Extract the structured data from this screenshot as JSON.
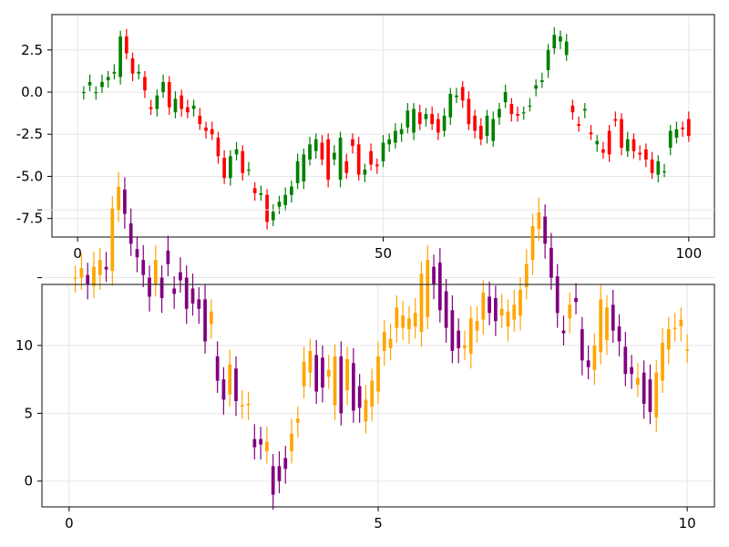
{
  "colors": {
    "up": "#008000",
    "down": "#ff0000",
    "up2": "#ffa500",
    "down2": "#800080",
    "grid": "#e6e6e6",
    "frame": "#000000"
  },
  "chart_data": [
    {
      "type": "candlestick",
      "title": "",
      "xlabel": "",
      "ylabel": "",
      "xlim": [
        -4.2,
        104.2
      ],
      "ylim": [
        -8.6,
        4.6
      ],
      "xticks": [
        0,
        50,
        100
      ],
      "xtick_labels": [
        "0",
        "50",
        "100"
      ],
      "yticks": [
        -7.5,
        -5.0,
        -2.5,
        0.0,
        2.5
      ],
      "ytick_labels": [
        "-7.5",
        "-5.0",
        "-2.5",
        "0.0",
        "2.5"
      ],
      "grid": true,
      "up_color": "green",
      "down_color": "red",
      "x": [
        1,
        2,
        3,
        4,
        5,
        6,
        7,
        8,
        9,
        10,
        11,
        12,
        13,
        14,
        15,
        16,
        17,
        18,
        19,
        20,
        21,
        22,
        23,
        24,
        25,
        26,
        27,
        28,
        29,
        30,
        31,
        32,
        33,
        34,
        35,
        36,
        37,
        38,
        39,
        40,
        41,
        42,
        43,
        44,
        45,
        46,
        47,
        48,
        49,
        50,
        51,
        52,
        53,
        54,
        55,
        56,
        57,
        58,
        59,
        60,
        61,
        62,
        63,
        64,
        65,
        66,
        67,
        68,
        69,
        70,
        71,
        72,
        73,
        74,
        75,
        76,
        77,
        78,
        79,
        80,
        81,
        82,
        83,
        84,
        85,
        86,
        87,
        88,
        89,
        90,
        91,
        92,
        93,
        94,
        95,
        96,
        97,
        98,
        99,
        100
      ],
      "open": [
        0.0,
        0.4,
        0.0,
        0.3,
        0.7,
        1.1,
        0.9,
        3.3,
        2.0,
        1.1,
        0.9,
        -0.9,
        -1.0,
        0.0,
        0.6,
        -1.2,
        -0.2,
        -0.9,
        -1.0,
        -1.4,
        -2.1,
        -2.2,
        -2.7,
        -3.9,
        -5.1,
        -3.7,
        -3.5,
        -4.6,
        -5.7,
        -6.1,
        -6.1,
        -7.6,
        -6.8,
        -6.7,
        -6.1,
        -5.4,
        -5.3,
        -4.0,
        -3.5,
        -3.0,
        -2.8,
        -4.0,
        -5.2,
        -4.1,
        -2.8,
        -3.1,
        -4.9,
        -3.5,
        -4.3,
        -4.1,
        -3.1,
        -3.0,
        -2.5,
        -2.1,
        -2.4,
        -1.2,
        -1.6,
        -1.3,
        -1.6,
        -2.3,
        -1.5,
        -0.3,
        0.3,
        -0.4,
        -1.4,
        -2.0,
        -2.6,
        -2.9,
        -1.5,
        -0.6,
        -0.7,
        -1.3,
        -1.2,
        -0.8,
        0.2,
        0.6,
        1.3,
        2.6,
        3.0,
        2.2,
        -0.8,
        -1.9,
        -1.1,
        -2.4,
        -3.1,
        -3.4,
        -2.3,
        -1.6,
        -1.6,
        -3.5,
        -2.8,
        -3.6,
        -3.4,
        -4.0,
        -4.9,
        -4.7,
        -3.3,
        -2.7,
        -2.1,
        -1.6
      ],
      "close": [
        0.0,
        0.6,
        0.0,
        0.6,
        0.9,
        1.2,
        3.3,
        2.3,
        1.1,
        1.2,
        0.1,
        -1.0,
        -0.2,
        0.6,
        -0.9,
        -0.4,
        -1.0,
        -1.2,
        -0.8,
        -1.9,
        -2.3,
        -2.5,
        -3.8,
        -5.1,
        -3.8,
        -3.4,
        -4.8,
        -4.6,
        -6.0,
        -6.0,
        -7.7,
        -7.1,
        -6.5,
        -6.1,
        -5.6,
        -4.1,
        -3.7,
        -3.1,
        -2.8,
        -4.0,
        -5.2,
        -3.6,
        -2.7,
        -4.8,
        -3.2,
        -4.9,
        -4.6,
        -4.3,
        -4.4,
        -3.0,
        -2.8,
        -2.3,
        -2.2,
        -1.1,
        -1.0,
        -1.9,
        -1.3,
        -1.9,
        -2.4,
        -1.4,
        -0.1,
        -0.2,
        -0.5,
        -1.9,
        -2.3,
        -2.8,
        -1.4,
        -1.6,
        -1.0,
        0.0,
        -1.3,
        -1.4,
        -1.2,
        -0.8,
        0.4,
        0.7,
        2.5,
        3.4,
        3.3,
        3.0,
        -1.2,
        -2.0,
        -1.0,
        -2.5,
        -2.9,
        -3.6,
        -3.7,
        -1.7,
        -3.3,
        -2.8,
        -3.5,
        -3.7,
        -4.0,
        -4.8,
        -4.1,
        -4.7,
        -2.3,
        -2.2,
        -2.2,
        -2.6
      ]
    },
    {
      "type": "candlestick",
      "title": "",
      "xlabel": "",
      "ylabel": "",
      "xlim": [
        -0.44,
        10.44
      ],
      "ylim": [
        -1.9,
        14.5
      ],
      "xticks": [
        0,
        5,
        10
      ],
      "xtick_labels": [
        "0",
        "5",
        "10"
      ],
      "yticks": [
        0,
        5,
        10
      ],
      "ytick_labels": [
        "0",
        "5",
        "10"
      ],
      "extra_unlabeled_yticks": [
        15,
        20
      ],
      "grid": true,
      "up_color": "orange",
      "down_color": "purple",
      "x": [
        0.1,
        0.2,
        0.3,
        0.4,
        0.5,
        0.6,
        0.7,
        0.8,
        0.9,
        1.0,
        1.1,
        1.2,
        1.3,
        1.4,
        1.5,
        1.6,
        1.7,
        1.8,
        1.9,
        2.0,
        2.1,
        2.2,
        2.3,
        2.4,
        2.5,
        2.6,
        2.7,
        2.8,
        2.9,
        3.0,
        3.1,
        3.2,
        3.3,
        3.4,
        3.5,
        3.6,
        3.7,
        3.8,
        3.9,
        4.0,
        4.1,
        4.2,
        4.3,
        4.4,
        4.5,
        4.6,
        4.7,
        4.8,
        4.9,
        5.0,
        5.1,
        5.2,
        5.3,
        5.4,
        5.5,
        5.6,
        5.7,
        5.8,
        5.9,
        6.0,
        6.1,
        6.2,
        6.3,
        6.4,
        6.5,
        6.6,
        6.7,
        6.8,
        6.9,
        7.0,
        7.1,
        7.2,
        7.3,
        7.4,
        7.5,
        7.6,
        7.7,
        7.8,
        7.9,
        8.0,
        8.1,
        8.2,
        8.3,
        8.4,
        8.5,
        8.6,
        8.7,
        8.8,
        8.9,
        9.0,
        9.1,
        9.2,
        9.3,
        9.4,
        9.5,
        9.6,
        9.7,
        9.8,
        9.9,
        10.0
      ],
      "open": [
        15.0,
        15.0,
        15.2,
        14.4,
        15.2,
        15.8,
        15.5,
        20.0,
        21.5,
        19.0,
        17.1,
        16.3,
        15.0,
        14.5,
        15.0,
        17.0,
        14.2,
        15.4,
        15.0,
        14.2,
        13.4,
        13.4,
        11.6,
        9.2,
        7.5,
        6.4,
        8.3,
        5.5,
        5.6,
        3.1,
        3.1,
        2.2,
        1.1,
        1.1,
        1.7,
        2.2,
        4.3,
        7.0,
        8.0,
        9.3,
        9.1,
        7.7,
        5.6,
        9.2,
        6.7,
        8.7,
        7.0,
        4.4,
        5.5,
        6.6,
        9.6,
        9.8,
        11.3,
        11.3,
        11.2,
        11.4,
        11.0,
        12.1,
        15.8,
        16.1,
        14.0,
        12.6,
        11.1,
        9.8,
        9.4,
        11.1,
        11.9,
        13.6,
        13.5,
        12.2,
        11.4,
        11.9,
        12.2,
        14.3,
        16.3,
        18.6,
        19.5,
        17.2,
        15.1,
        11.1,
        12.0,
        13.5,
        11.2,
        8.9,
        8.2,
        9.5,
        10.4,
        13.0,
        11.4,
        9.9,
        8.4,
        7.1,
        8.0,
        7.5,
        4.7,
        7.4,
        9.7,
        11.2,
        11.4,
        9.6
      ],
      "close": [
        15.0,
        15.7,
        14.5,
        15.8,
        16.3,
        15.6,
        20.1,
        21.7,
        19.7,
        17.5,
        16.5,
        15.2,
        13.6,
        16.3,
        13.5,
        16.0,
        13.8,
        14.8,
        12.7,
        13.1,
        12.7,
        10.3,
        12.5,
        7.4,
        6.0,
        8.6,
        5.9,
        5.6,
        5.7,
        2.5,
        2.7,
        2.9,
        -1.0,
        0.0,
        0.9,
        3.5,
        4.6,
        8.8,
        9.6,
        6.6,
        6.9,
        8.2,
        9.2,
        5.0,
        9.0,
        5.2,
        5.4,
        6.0,
        7.4,
        9.2,
        11.0,
        10.5,
        12.8,
        12.2,
        12.0,
        12.4,
        15.3,
        16.3,
        14.5,
        12.6,
        11.3,
        9.6,
        9.8,
        10.0,
        12.0,
        11.8,
        13.9,
        12.4,
        11.8,
        12.7,
        12.5,
        13.0,
        14.1,
        16.0,
        18.8,
        19.8,
        17.5,
        15.0,
        12.4,
        10.9,
        13.0,
        13.2,
        8.9,
        8.4,
        10.0,
        13.4,
        12.8,
        11.1,
        10.3,
        7.9,
        7.9,
        7.6,
        5.7,
        5.1,
        8.0,
        10.2,
        11.2,
        11.3,
        11.9,
        9.7
      ]
    }
  ]
}
